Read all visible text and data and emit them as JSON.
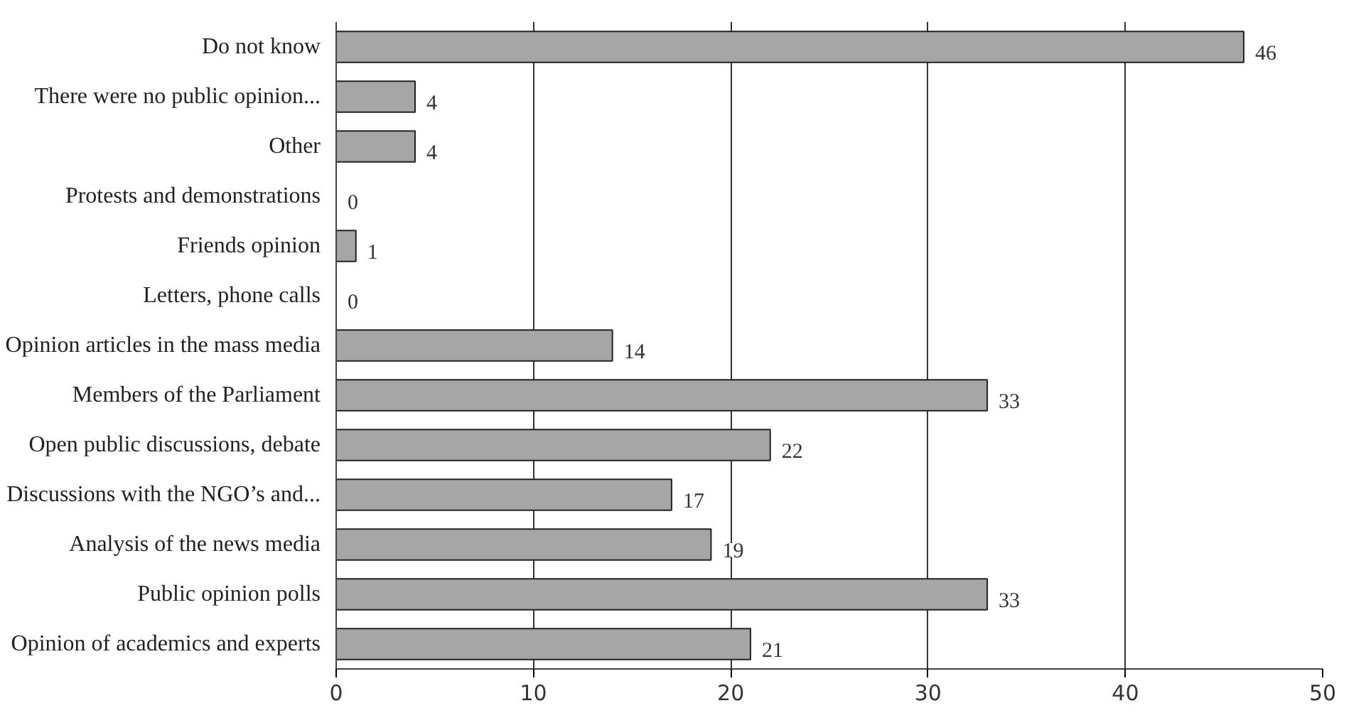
{
  "chart_data": {
    "type": "bar",
    "orientation": "horizontal",
    "categories": [
      "Do not know",
      "There were no public opinion...",
      "Other",
      "Protests and demonstrations",
      "Friends opinion",
      "Letters, phone calls",
      "Opinion articles in the mass media",
      "Members of the Parliament",
      "Open public discussions, debate",
      "Discussions with the NGO’s and...",
      "Analysis of the news media",
      "Public opinion polls",
      "Opinion of academics and experts"
    ],
    "values": [
      46,
      4,
      4,
      0,
      1,
      0,
      14,
      33,
      22,
      17,
      19,
      33,
      21
    ],
    "color": "#a6a6a6",
    "xlim": [
      0,
      50
    ],
    "xticks": [
      0,
      10,
      20,
      30,
      40,
      50
    ],
    "grid": "x",
    "data_labels": true
  }
}
